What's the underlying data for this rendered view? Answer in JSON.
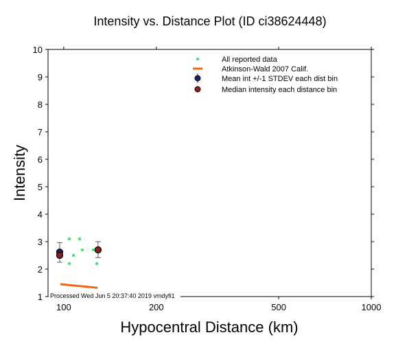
{
  "chart_data": {
    "type": "scatter",
    "title": "Intensity vs. Distance Plot (ID ci38624448)",
    "xlabel": "Hypocentral Distance (km)",
    "ylabel": "Intensity",
    "xscale": "log",
    "xlim": [
      88.9,
      1000
    ],
    "ylim": [
      1,
      10
    ],
    "xticks": [
      100,
      200,
      500,
      1000
    ],
    "yticks": [
      1,
      2,
      3,
      4,
      5,
      6,
      7,
      8,
      9,
      10
    ],
    "legend_position": "top-right",
    "legend": [
      "All reported data",
      "Atkinson-Wald 2007 Calif.",
      "Mean int +/-1 STDEV each dist bin",
      "Median intensity each distance bin"
    ],
    "reported": [
      {
        "x": 104.2,
        "y": 3.1
      },
      {
        "x": 112.6,
        "y": 3.1
      },
      {
        "x": 104.2,
        "y": 2.2
      },
      {
        "x": 107.5,
        "y": 2.5
      },
      {
        "x": 114.9,
        "y": 2.7
      },
      {
        "x": 124.7,
        "y": 2.7
      },
      {
        "x": 128.0,
        "y": 2.2
      }
    ],
    "atkinson_wald": [
      {
        "x": 97.5,
        "y": 1.45
      },
      {
        "x": 128.7,
        "y": 1.32
      }
    ],
    "mean": [
      {
        "x": 97,
        "y": 2.62,
        "lo": 2.25,
        "hi": 2.97
      },
      {
        "x": 129.3,
        "y": 2.7,
        "lo": 2.42,
        "hi": 3.0
      }
    ],
    "median": [
      {
        "x": 97,
        "y": 2.5
      },
      {
        "x": 129.3,
        "y": 2.7
      }
    ],
    "footer": "Processed Wed Jun  5 20:37:40 2019 vmdyfi1",
    "colors": {
      "reported": "#22ee66",
      "aw": "#ee6611",
      "mean": "#222266",
      "median": "#882222"
    }
  }
}
